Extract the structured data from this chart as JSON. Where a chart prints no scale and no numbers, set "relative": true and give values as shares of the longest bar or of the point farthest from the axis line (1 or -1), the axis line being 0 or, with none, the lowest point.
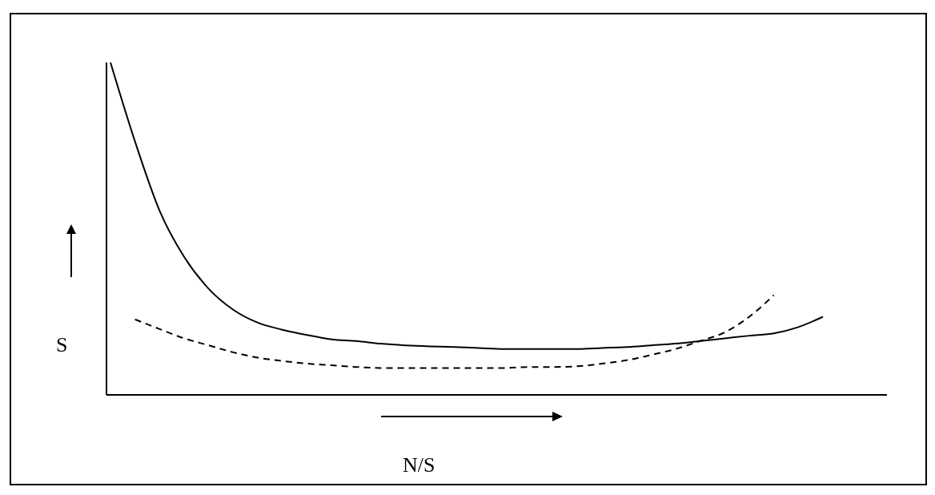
{
  "chart_data": {
    "type": "line",
    "relative": true,
    "xlabel": "N/S",
    "ylabel": "S",
    "categories": [
      null,
      null,
      null,
      null,
      null,
      null,
      null,
      null,
      null,
      null,
      null,
      null,
      null,
      null,
      null,
      null,
      null,
      null,
      null,
      null,
      null,
      null,
      null,
      null,
      null,
      null,
      null,
      null,
      null,
      null
    ],
    "marker": "none",
    "grid": false,
    "legend": false,
    "series": [
      {
        "color": "#000000",
        "line_style": "solid",
        "values": [
          1.0,
          0.762,
          0.554,
          0.415,
          0.319,
          0.256,
          0.217,
          0.196,
          0.18,
          0.167,
          0.162,
          0.154,
          0.149,
          0.146,
          0.144,
          0.141,
          0.138,
          0.138,
          0.138,
          0.138,
          0.141,
          0.144,
          0.149,
          0.154,
          0.162,
          0.17,
          0.178,
          0.185,
          0.204,
          0.235
        ]
      },
      {
        "color": "#000000",
        "line_style": "dashed",
        "values": [
          null,
          0.227,
          0.198,
          0.17,
          0.149,
          0.128,
          0.112,
          0.102,
          0.094,
          0.089,
          0.084,
          0.081,
          0.081,
          0.081,
          0.081,
          0.081,
          0.081,
          0.084,
          0.084,
          0.086,
          0.094,
          0.104,
          0.12,
          0.138,
          0.162,
          0.188,
          0.235,
          0.3,
          null,
          null
        ]
      }
    ]
  }
}
